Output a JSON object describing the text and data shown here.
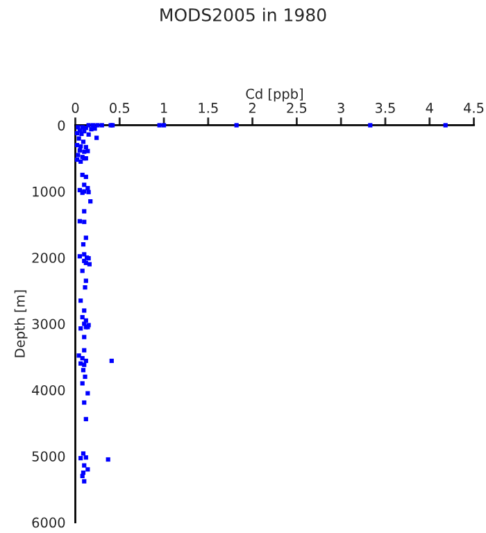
{
  "chart_data": {
    "type": "scatter",
    "title": "MODS2005 in 1980",
    "xlabel": "Cd [ppb]",
    "ylabel": "Depth [m]",
    "xlim": [
      0,
      4.5
    ],
    "xticks": [
      0,
      0.5,
      1,
      1.5,
      2,
      2.5,
      3,
      3.5,
      4,
      4.5
    ],
    "ylim": [
      6000,
      0
    ],
    "yticks": [
      0,
      1000,
      2000,
      3000,
      4000,
      5000,
      6000
    ],
    "marker": "square",
    "grid": false,
    "legend": false,
    "series": [
      {
        "color": "#0000ff",
        "x": [
          0.15,
          0.2,
          0.25,
          0.3,
          0.4,
          0.42,
          0.95,
          1.0,
          1.82,
          3.33,
          4.18,
          0.03,
          0.08,
          0.12,
          0.18,
          0.22,
          0.05,
          0.1,
          0.02,
          0.07,
          0.15,
          0.24,
          0.04,
          0.09,
          0.02,
          0.06,
          0.12,
          0.05,
          0.1,
          0.14,
          0.03,
          0.08,
          0.12,
          0.02,
          0.06,
          0.1,
          0.08,
          0.12,
          0.1,
          0.14,
          0.05,
          0.1,
          0.15,
          0.08,
          0.17,
          0.1,
          0.05,
          0.1,
          0.12,
          0.09,
          0.1,
          0.05,
          0.13,
          0.15,
          0.1,
          0.12,
          0.16,
          0.08,
          0.12,
          0.11,
          0.06,
          0.1,
          0.08,
          0.12,
          0.1,
          0.14,
          0.12,
          0.15,
          0.06,
          0.1,
          0.1,
          0.41,
          0.04,
          0.08,
          0.12,
          0.06,
          0.1,
          0.09,
          0.11,
          0.08,
          0.14,
          0.1,
          0.12,
          0.09,
          0.06,
          0.12,
          0.37,
          0.1,
          0.14,
          0.08,
          0.1,
          0.09
        ],
        "values": [
          0,
          0,
          0,
          0,
          0,
          0,
          0,
          0,
          0,
          0,
          0,
          30,
          30,
          40,
          60,
          50,
          80,
          90,
          120,
          130,
          140,
          190,
          200,
          250,
          300,
          320,
          330,
          380,
          400,
          390,
          450,
          480,
          500,
          520,
          550,
          500,
          750,
          780,
          900,
          950,
          980,
          1000,
          1010,
          1020,
          1150,
          1300,
          1450,
          1460,
          1700,
          1800,
          1950,
          1980,
          2000,
          2010,
          2050,
          2080,
          2100,
          2200,
          2350,
          2450,
          2650,
          2800,
          2900,
          2950,
          3000,
          3050,
          3050,
          3020,
          3070,
          3200,
          3400,
          3560,
          3480,
          3520,
          3560,
          3600,
          3620,
          3700,
          3800,
          3900,
          4050,
          4190,
          4440,
          4960,
          5030,
          5020,
          5050,
          5140,
          5200,
          5300,
          5380,
          5250
        ]
      }
    ]
  }
}
